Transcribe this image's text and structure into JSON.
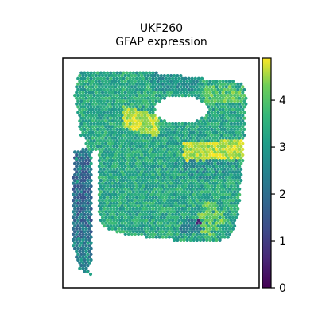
{
  "chart_data": {
    "type": "scatter",
    "title": "UKF260",
    "subtitle": "GFAP expression",
    "xlabel": "",
    "ylabel": "",
    "colorbar": {
      "colormap": "viridis",
      "range": [
        0,
        4.9
      ],
      "ticks": [
        "0",
        "1",
        "2",
        "3",
        "4"
      ],
      "tick_values": [
        0,
        1,
        2,
        3,
        4
      ]
    },
    "axes_ticks": false,
    "grid": false,
    "description_levels": {
      "low_left_column": 2.0,
      "edge_spots": 3.2,
      "bright_bands": 4.6,
      "main_tissue": 3.3
    }
  },
  "colors": {
    "viridis_low": "#440154",
    "viridis_mid": "#21918c",
    "viridis_high": "#fde725",
    "frame": "#000000"
  }
}
